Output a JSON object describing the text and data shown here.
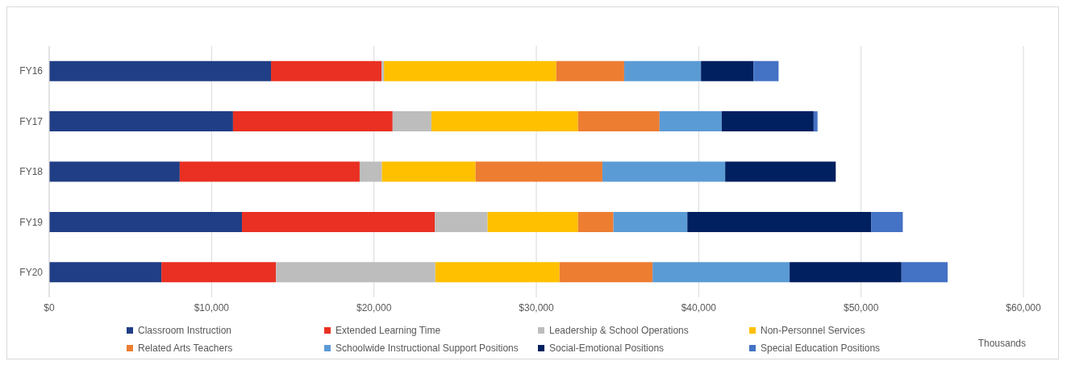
{
  "chart_data": {
    "type": "bar",
    "orientation": "horizontal",
    "stacked": true,
    "xlabel": "Thousands",
    "categories": [
      "FY16",
      "FY17",
      "FY18",
      "FY19",
      "FY20"
    ],
    "series": [
      {
        "name": "Classroom Instruction",
        "color": "#203e85",
        "values": [
          13660,
          11320,
          8040,
          11870,
          6910
        ]
      },
      {
        "name": "Extended Learning Time",
        "color": "#e93022",
        "values": [
          6810,
          9830,
          11080,
          11880,
          7060
        ]
      },
      {
        "name": "Leadership & School Operations",
        "color": "#bdbdbd",
        "values": [
          150,
          2390,
          1370,
          3250,
          9810
        ]
      },
      {
        "name": "Non-Personnel Services",
        "color": "#ffc000",
        "values": [
          10610,
          9030,
          5770,
          5570,
          7650
        ]
      },
      {
        "name": "Related Arts Teachers",
        "color": "#ed7d31",
        "values": [
          4180,
          5020,
          7810,
          2180,
          5730
        ]
      },
      {
        "name": "Schoolwide Instructional Support Positions",
        "color": "#5b9bd5",
        "values": [
          4730,
          3830,
          7560,
          4550,
          8440
        ]
      },
      {
        "name": "Social-Emotional Positions",
        "color": "#002060",
        "values": [
          3230,
          5660,
          6810,
          11320,
          6890
        ]
      },
      {
        "name": "Special Education Positions",
        "color": "#4472c4",
        "values": [
          1550,
          240,
          null,
          1950,
          2840
        ]
      }
    ],
    "xlim": [
      0,
      60000
    ],
    "xticks": [
      {
        "value": 0,
        "label": "$0"
      },
      {
        "value": 10000,
        "label": "$10,000"
      },
      {
        "value": 20000,
        "label": "$20,000"
      },
      {
        "value": 30000,
        "label": "$30,000"
      },
      {
        "value": 40000,
        "label": "$40,000"
      },
      {
        "value": 50000,
        "label": "$50,000"
      },
      {
        "value": 60000,
        "label": "$60,000"
      }
    ],
    "grid": "x",
    "legend": "bottom"
  }
}
